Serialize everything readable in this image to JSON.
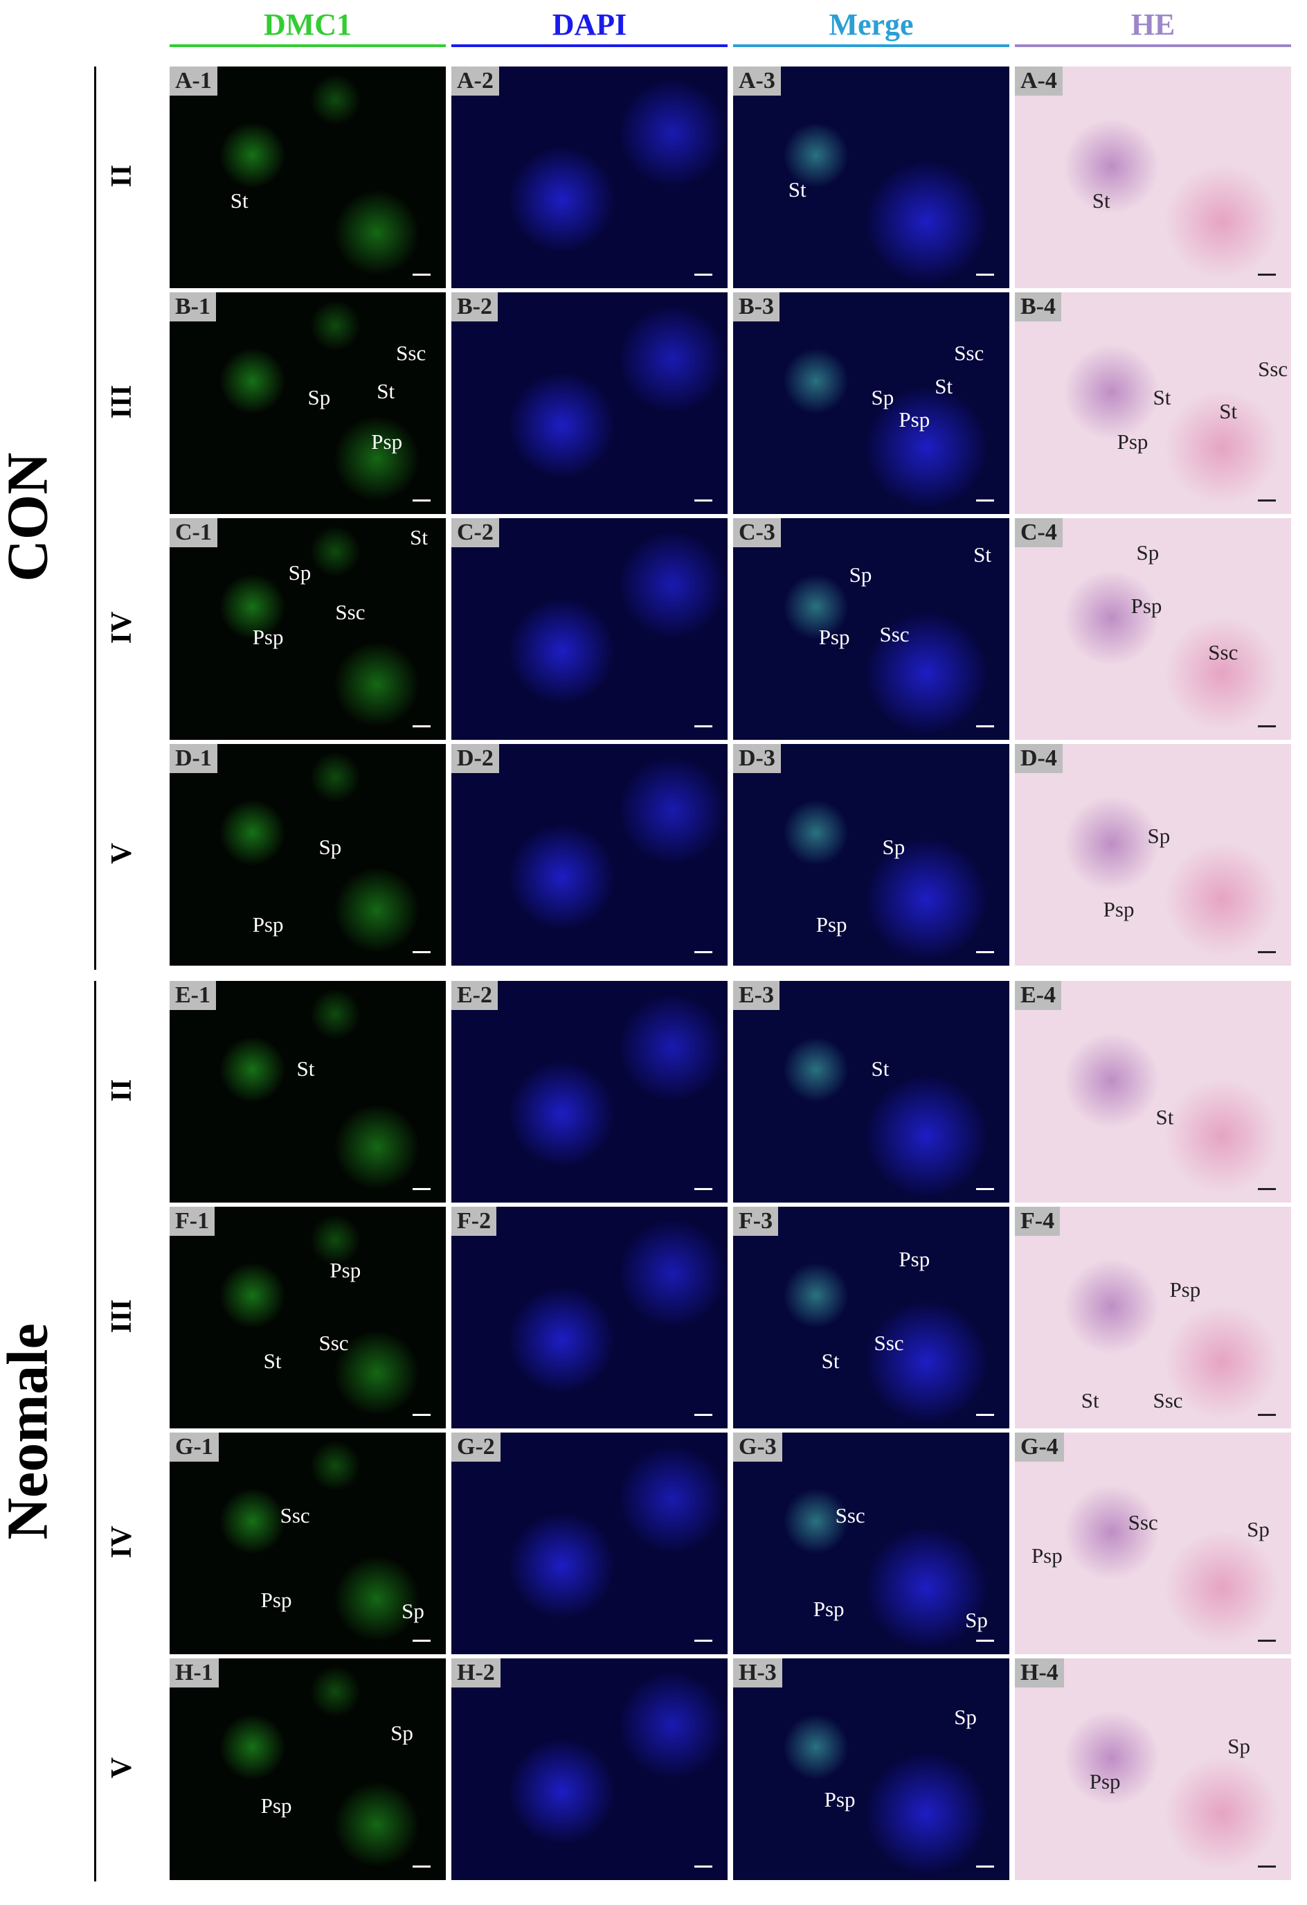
{
  "columns": [
    {
      "label": "DMC1",
      "color": "#33cc33"
    },
    {
      "label": "DAPI",
      "color": "#1a1aee"
    },
    {
      "label": "Merge",
      "color": "#2a9fd6"
    },
    {
      "label": "HE",
      "color": "#9d86c9"
    }
  ],
  "groups": [
    {
      "label": "CON",
      "rows": [
        {
          "stage": "II",
          "panels": [
            {
              "label": "A-1",
              "annotations": [
                "St"
              ]
            },
            {
              "label": "A-2",
              "annotations": []
            },
            {
              "label": "A-3",
              "annotations": [
                "St"
              ]
            },
            {
              "label": "A-4",
              "annotations": [
                "St"
              ]
            }
          ]
        },
        {
          "stage": "III",
          "panels": [
            {
              "label": "B-1",
              "annotations": [
                "Ssc",
                "Sp",
                "St",
                "Psp"
              ]
            },
            {
              "label": "B-2",
              "annotations": []
            },
            {
              "label": "B-3",
              "annotations": [
                "Ssc",
                "Sp",
                "St",
                "Psp"
              ]
            },
            {
              "label": "B-4",
              "annotations": [
                "Ssc",
                "St",
                "St",
                "Psp"
              ]
            }
          ]
        },
        {
          "stage": "IV",
          "panels": [
            {
              "label": "C-1",
              "annotations": [
                "St",
                "Sp",
                "Ssc",
                "Psp"
              ]
            },
            {
              "label": "C-2",
              "annotations": []
            },
            {
              "label": "C-3",
              "annotations": [
                "St",
                "Sp",
                "Ssc",
                "Psp"
              ]
            },
            {
              "label": "C-4",
              "annotations": [
                "Sp",
                "Psp",
                "Ssc"
              ]
            }
          ]
        },
        {
          "stage": "V",
          "panels": [
            {
              "label": "D-1",
              "annotations": [
                "Sp",
                "Psp"
              ]
            },
            {
              "label": "D-2",
              "annotations": []
            },
            {
              "label": "D-3",
              "annotations": [
                "Sp",
                "Psp"
              ]
            },
            {
              "label": "D-4",
              "annotations": [
                "Sp",
                "Psp"
              ]
            }
          ]
        }
      ]
    },
    {
      "label": "Neomale",
      "rows": [
        {
          "stage": "II",
          "panels": [
            {
              "label": "E-1",
              "annotations": [
                "St"
              ]
            },
            {
              "label": "E-2",
              "annotations": []
            },
            {
              "label": "E-3",
              "annotations": [
                "St"
              ]
            },
            {
              "label": "E-4",
              "annotations": [
                "St"
              ]
            }
          ]
        },
        {
          "stage": "III",
          "panels": [
            {
              "label": "F-1",
              "annotations": [
                "Psp",
                "Ssc",
                "St"
              ]
            },
            {
              "label": "F-2",
              "annotations": []
            },
            {
              "label": "F-3",
              "annotations": [
                "Psp",
                "Ssc",
                "St"
              ]
            },
            {
              "label": "F-4",
              "annotations": [
                "Psp",
                "St",
                "Ssc"
              ]
            }
          ]
        },
        {
          "stage": "IV",
          "panels": [
            {
              "label": "G-1",
              "annotations": [
                "Ssc",
                "Psp",
                "Sp"
              ]
            },
            {
              "label": "G-2",
              "annotations": []
            },
            {
              "label": "G-3",
              "annotations": [
                "Ssc",
                "Psp",
                "Sp"
              ]
            },
            {
              "label": "G-4",
              "annotations": [
                "Ssc",
                "Sp",
                "Psp"
              ]
            }
          ]
        },
        {
          "stage": "V",
          "panels": [
            {
              "label": "H-1",
              "annotations": [
                "Sp",
                "Psp"
              ]
            },
            {
              "label": "H-2",
              "annotations": []
            },
            {
              "label": "H-3",
              "annotations": [
                "Sp",
                "Psp"
              ]
            },
            {
              "label": "H-4",
              "annotations": [
                "Sp",
                "Psp"
              ]
            }
          ]
        }
      ]
    }
  ]
}
